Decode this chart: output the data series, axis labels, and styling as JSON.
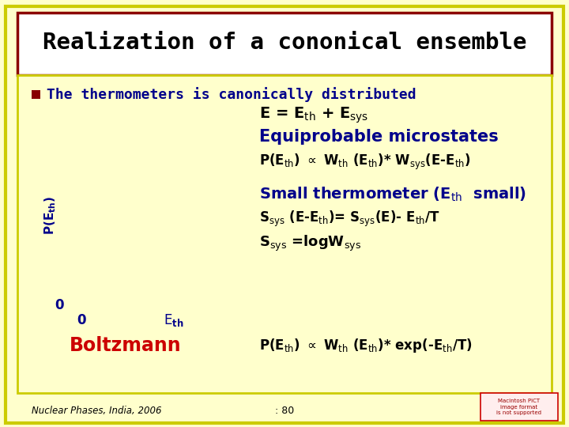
{
  "title": "Realization of a cononical ensemble",
  "bullet": "The thermometers is canonically distributed",
  "bg_color": "#FFFFCC",
  "title_bg": "#FFFFFF",
  "title_border": "#8B0000",
  "outer_border": "#CCCC00",
  "plot_border": "#00008B",
  "plot_fill_color": "#FFFF00",
  "plot_curve_color": "#CC0000",
  "arrow_color": "#2255CC",
  "dot_color": "#4488FF",
  "footer_left": "Nuclear Phases, India, 2006",
  "footer_center": ": 80",
  "boltzmann_color": "#CC0000",
  "text_color": "#000000",
  "blue_text_color": "#00008B",
  "bullet_color": "#880000",
  "equiprobable": "Equiprobable microstates",
  "boltzmann_label": "Boltzmann",
  "watermark_border": "#CC0000",
  "watermark_bg": "#FFEEEE",
  "watermark_text_color": "#990000"
}
